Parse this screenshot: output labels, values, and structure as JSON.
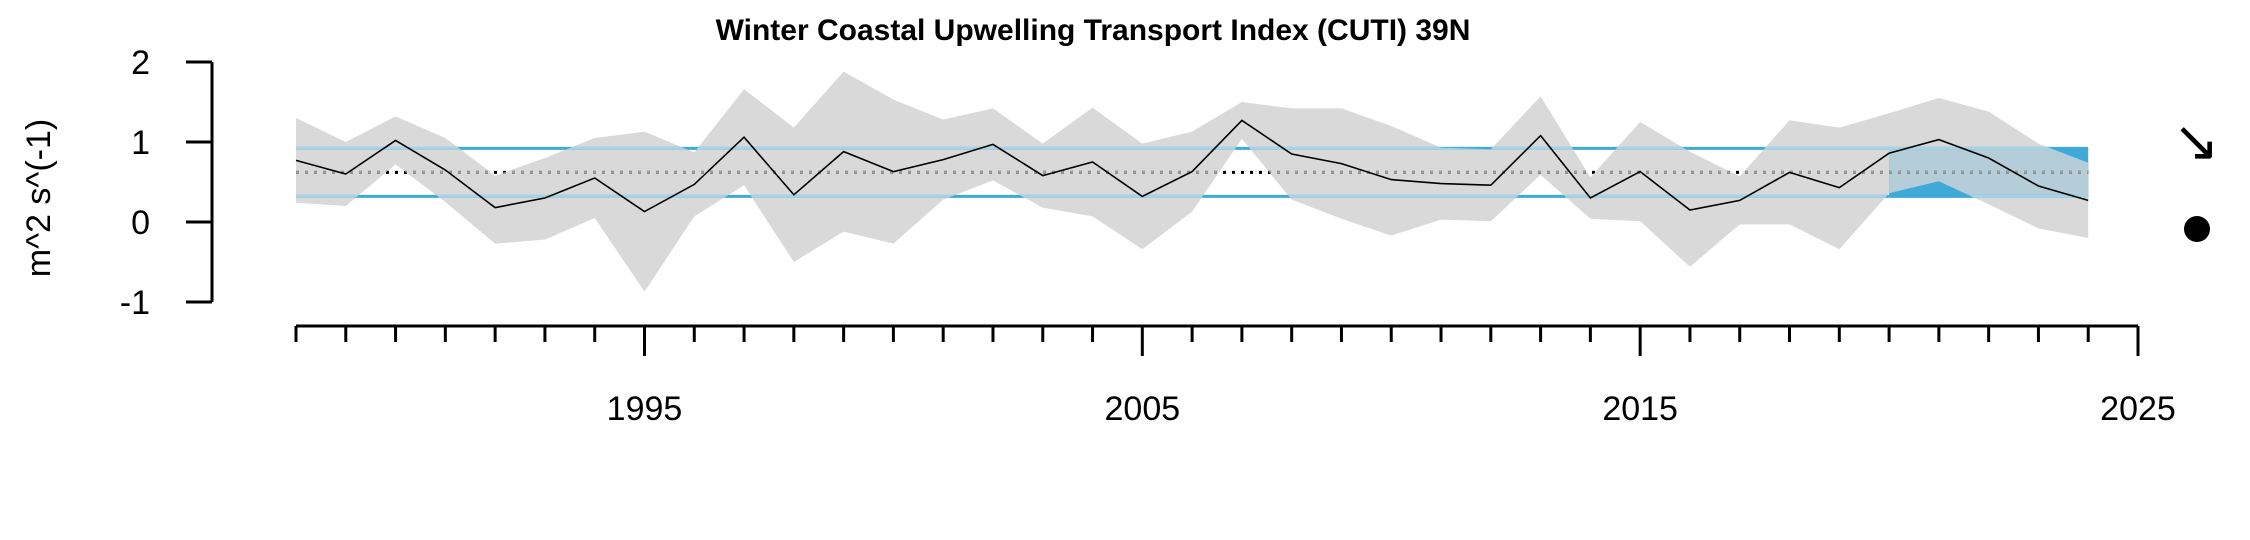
{
  "chart_data": {
    "type": "line",
    "title": "Winter Coastal Upwelling Transport Index (CUTI) 39N",
    "ylabel": "m^2 s^(-1)",
    "xlabel": "",
    "xlim": [
      1988,
      2025
    ],
    "ylim": [
      -1,
      2
    ],
    "x_ticks": [
      1995,
      2005,
      2015,
      2025
    ],
    "y_ticks": [
      2,
      1,
      0,
      -1
    ],
    "x_tick_labels": [
      "1995",
      "2005",
      "2015",
      "2025"
    ],
    "y_tick_labels": [
      "2",
      "1",
      "0",
      "-1"
    ],
    "minor_x_ticks_every": 1,
    "grid": false,
    "legend": "none",
    "series": [
      {
        "x": [
          1988,
          1989,
          1990,
          1991,
          1992,
          1993,
          1994,
          1995,
          1996,
          1997,
          1998,
          1999,
          2000,
          2001,
          2002,
          2003,
          2004,
          2005,
          2006,
          2007,
          2008,
          2009,
          2010,
          2011,
          2012,
          2013,
          2014,
          2015,
          2016,
          2017,
          2018,
          2019,
          2020,
          2021,
          2022,
          2023,
          2024
        ],
        "values": [
          0.77,
          0.6,
          1.02,
          0.65,
          0.18,
          0.3,
          0.55,
          0.13,
          0.47,
          1.06,
          0.34,
          0.88,
          0.63,
          0.78,
          0.97,
          0.58,
          0.75,
          0.32,
          0.63,
          1.27,
          0.85,
          0.73,
          0.53,
          0.48,
          0.46,
          1.08,
          0.3,
          0.63,
          0.15,
          0.27,
          0.62,
          0.43,
          0.86,
          1.03,
          0.8,
          0.45,
          0.27
        ],
        "upper": [
          1.3,
          1.0,
          1.32,
          1.05,
          0.58,
          0.8,
          1.05,
          1.13,
          0.87,
          1.66,
          1.18,
          1.88,
          1.53,
          1.28,
          1.42,
          0.98,
          1.43,
          0.98,
          1.13,
          1.5,
          1.42,
          1.42,
          1.2,
          0.93,
          0.91,
          1.57,
          0.56,
          1.25,
          0.88,
          0.57,
          1.27,
          1.18,
          1.36,
          1.55,
          1.38,
          0.98,
          0.74
        ],
        "lower": [
          0.24,
          0.2,
          0.72,
          0.25,
          -0.27,
          -0.22,
          0.05,
          -0.87,
          0.07,
          0.46,
          -0.5,
          -0.12,
          -0.27,
          0.28,
          0.52,
          0.18,
          0.07,
          -0.34,
          0.13,
          1.04,
          0.28,
          0.04,
          -0.17,
          0.03,
          0.01,
          0.59,
          0.04,
          0.01,
          -0.56,
          -0.03,
          -0.03,
          -0.34,
          0.36,
          0.51,
          0.22,
          -0.08,
          -0.2
        ]
      }
    ],
    "mean": 0.62,
    "sd_upper": 0.92,
    "sd_lower": 0.32,
    "recent_window": [
      2020,
      2024
    ],
    "trend_symbol": "↘",
    "mean_symbol": "●",
    "colors": {
      "line": "#000000",
      "ci_band": "#d9d9d9",
      "sd_lines": "#3fa9d8",
      "sd_lines_light": "#a7d3e4",
      "recent_fill": "#3fa9d8",
      "recent_overlay": "#b5cdd8",
      "mean_line": "#999999",
      "mean_line_early": "#000000"
    }
  }
}
